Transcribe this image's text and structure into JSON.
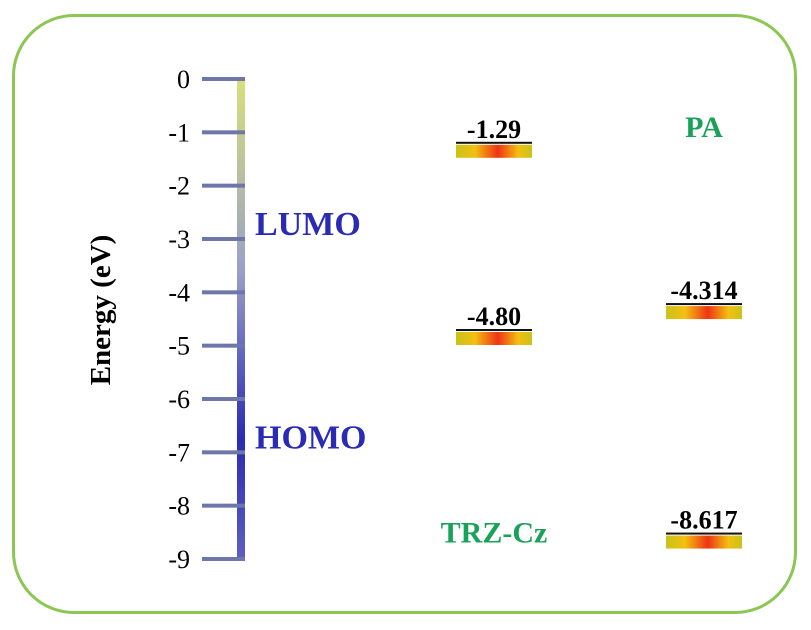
{
  "colors": {
    "border": "#8cc653",
    "band_label": "#2a2ab5",
    "molecule_label": "#1aa25a",
    "level_gradient": [
      "#c9c21a",
      "#f2c010",
      "#ef3416",
      "#f2c010",
      "#c9c21a"
    ]
  },
  "chart_data": {
    "type": "energy_level_diagram",
    "ylabel": "Energy (eV)",
    "ylim": [
      -9,
      0
    ],
    "ticks": [
      "0",
      "-1",
      "-2",
      "-3",
      "-4",
      "-5",
      "-6",
      "-7",
      "-8",
      "-9"
    ],
    "axis_gradient": [
      "#d8e07a",
      "#9aa0c8",
      "#2a2ab5",
      "#6060c0"
    ],
    "band_labels": [
      {
        "text": "LUMO",
        "y": -2.7
      },
      {
        "text": "HOMO",
        "y": -6.7
      }
    ],
    "molecules": [
      {
        "name": "TRZ-Cz",
        "name_y": -8.5,
        "levels": [
          {
            "value": -1.29,
            "label": "-1.29"
          },
          {
            "value": -4.8,
            "label": "-4.80"
          }
        ]
      },
      {
        "name": "PA",
        "name_y": -0.9,
        "levels": [
          {
            "value": -4.314,
            "label": "-4.314"
          },
          {
            "value": -8.617,
            "label": "-8.617"
          }
        ]
      }
    ]
  }
}
